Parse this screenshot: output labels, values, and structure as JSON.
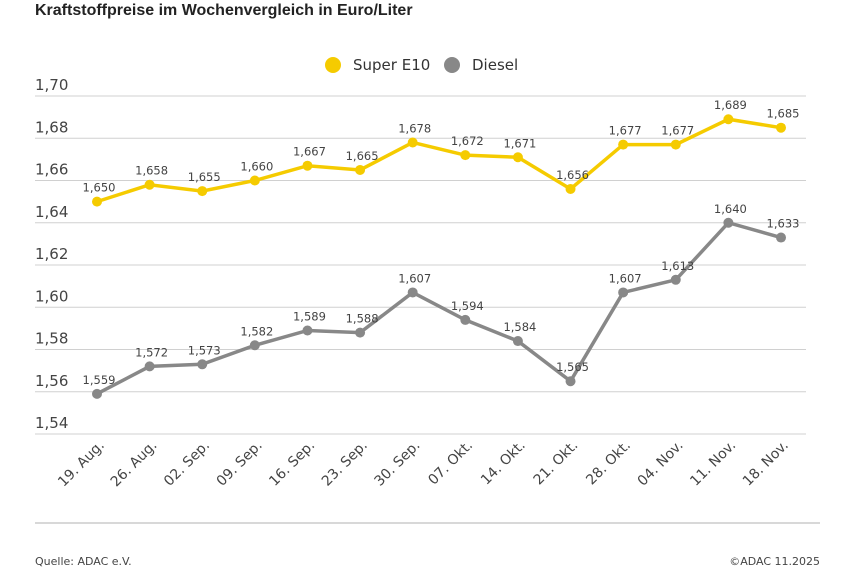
{
  "title": "Kraftstoffpreise im Wochenvergleich in Euro/Liter",
  "source": "Quelle: ADAC e.V.",
  "copyright": "©ADAC 11.2025",
  "chart_data": {
    "type": "line",
    "title": "Kraftstoffpreise im Wochenvergleich in Euro/Liter",
    "categories": [
      "19. Aug.",
      "26. Aug.",
      "02. Sep.",
      "09. Sep.",
      "16. Sep.",
      "23. Sep.",
      "30. Sep.",
      "07. Okt.",
      "14. Okt.",
      "21. Okt.",
      "28. Okt.",
      "04. Nov.",
      "11. Nov.",
      "18. Nov."
    ],
    "series": [
      {
        "name": "Super E10",
        "color": "#f5cb00",
        "values": [
          1.65,
          1.658,
          1.655,
          1.66,
          1.667,
          1.665,
          1.678,
          1.672,
          1.671,
          1.656,
          1.677,
          1.677,
          1.689,
          1.685
        ],
        "labels": [
          "1,650",
          "1,658",
          "1,655",
          "1,660",
          "1,667",
          "1,665",
          "1,678",
          "1,672",
          "1,671",
          "1,656",
          "1,677",
          "1,677",
          "1,689",
          "1,685"
        ]
      },
      {
        "name": "Diesel",
        "color": "#888888",
        "values": [
          1.559,
          1.572,
          1.573,
          1.582,
          1.589,
          1.588,
          1.607,
          1.594,
          1.584,
          1.565,
          1.607,
          1.613,
          1.64,
          1.633
        ],
        "labels": [
          "1,559",
          "1,572",
          "1,573",
          "1,582",
          "1,589",
          "1,588",
          "1,607",
          "1,594",
          "1,584",
          "1,565",
          "1,607",
          "1,613",
          "1,640",
          "1,633"
        ]
      }
    ],
    "yticks": [
      1.54,
      1.56,
      1.58,
      1.6,
      1.62,
      1.64,
      1.66,
      1.68,
      1.7
    ],
    "ytick_labels": [
      "1,54",
      "1,56",
      "1,58",
      "1,60",
      "1,62",
      "1,64",
      "1,66",
      "1,68",
      "1,70"
    ],
    "ylim": [
      1.54,
      1.7
    ],
    "grid": true,
    "legend": "top-center"
  }
}
